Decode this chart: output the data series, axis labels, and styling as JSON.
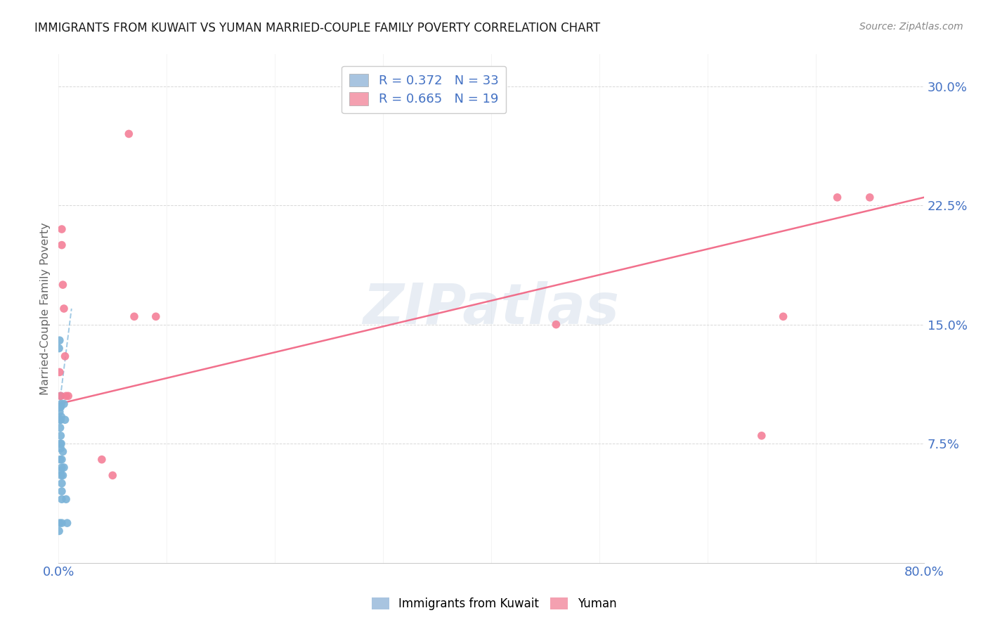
{
  "title": "IMMIGRANTS FROM KUWAIT VS YUMAN MARRIED-COUPLE FAMILY POVERTY CORRELATION CHART",
  "source": "Source: ZipAtlas.com",
  "ylabel": "Married-Couple Family Poverty",
  "yticks": [
    0.0,
    0.075,
    0.15,
    0.225,
    0.3
  ],
  "ytick_labels": [
    "",
    "7.5%",
    "15.0%",
    "22.5%",
    "30.0%"
  ],
  "xlim": [
    0.0,
    0.8
  ],
  "ylim": [
    0.0,
    0.32
  ],
  "kuwait_scatter_x": [
    0.0005,
    0.0005,
    0.001,
    0.001,
    0.001,
    0.0015,
    0.0015,
    0.0015,
    0.0015,
    0.0015,
    0.002,
    0.002,
    0.002,
    0.002,
    0.002,
    0.002,
    0.0025,
    0.0025,
    0.0025,
    0.0025,
    0.003,
    0.003,
    0.003,
    0.003,
    0.003,
    0.003,
    0.004,
    0.004,
    0.005,
    0.005,
    0.006,
    0.007,
    0.008
  ],
  "kuwait_scatter_y": [
    0.135,
    0.02,
    0.14,
    0.095,
    0.025,
    0.098,
    0.09,
    0.085,
    0.075,
    0.065,
    0.105,
    0.098,
    0.09,
    0.08,
    0.072,
    0.058,
    0.1,
    0.092,
    0.075,
    0.055,
    0.065,
    0.06,
    0.05,
    0.045,
    0.04,
    0.025,
    0.07,
    0.055,
    0.1,
    0.06,
    0.09,
    0.04,
    0.025
  ],
  "yuman_scatter_x": [
    0.001,
    0.002,
    0.003,
    0.003,
    0.004,
    0.005,
    0.006,
    0.007,
    0.009,
    0.04,
    0.05,
    0.065,
    0.07,
    0.09,
    0.46,
    0.65,
    0.67,
    0.72,
    0.75
  ],
  "yuman_scatter_y": [
    0.12,
    0.105,
    0.21,
    0.2,
    0.175,
    0.16,
    0.13,
    0.105,
    0.105,
    0.065,
    0.055,
    0.27,
    0.155,
    0.155,
    0.15,
    0.08,
    0.155,
    0.23,
    0.23
  ],
  "kuwait_line_x": [
    0.0,
    0.012
  ],
  "kuwait_line_y": [
    0.095,
    0.16
  ],
  "yuman_line_x": [
    0.0,
    0.8
  ],
  "yuman_line_y": [
    0.1,
    0.23
  ],
  "kuwait_scatter_color": "#7ab3d8",
  "yuman_scatter_color": "#f48098",
  "kuwait_line_color": "#90c0e0",
  "yuman_line_color": "#f06080",
  "legend1_color": "#a8c4e0",
  "legend2_color": "#f4a0b0",
  "scatter_size": 70,
  "watermark_text": "ZIPatlas",
  "background_color": "#ffffff",
  "grid_color": "#d8d8d8",
  "title_color": "#1a1a1a",
  "axis_label_color": "#4472c4",
  "ylabel_color": "#666666",
  "source_color": "#888888",
  "legend_text_color": "#4472c4",
  "xtick_positions": [
    0.0,
    0.1,
    0.2,
    0.3,
    0.4,
    0.5,
    0.6,
    0.7,
    0.8
  ],
  "xtick_labels": [
    "0.0%",
    "",
    "",
    "",
    "",
    "",
    "",
    "",
    "80.0%"
  ]
}
